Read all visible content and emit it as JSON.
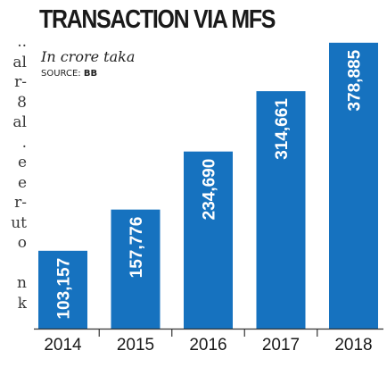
{
  "background_text": [
    "..",
    "al",
    "r-",
    "8",
    "al",
    ".",
    "e",
    "e",
    "r-",
    "ut",
    "o",
    "",
    "n",
    "k"
  ],
  "colors": {
    "bar": "#1672bf",
    "axis": "#333333"
  },
  "chart_data": {
    "type": "bar",
    "title": "TRANSACTION VIA MFS",
    "subtitle": "In crore taka",
    "source_label": "SOURCE:",
    "source_value": "BB",
    "categories": [
      "2014",
      "2015",
      "2016",
      "2017",
      "2018"
    ],
    "values": [
      103157,
      157776,
      234690,
      314661,
      378885
    ],
    "value_labels": [
      "103,157",
      "157,776",
      "234,690",
      "314,661",
      "378,885"
    ],
    "ylim": [
      0,
      400000
    ],
    "grid": false
  }
}
